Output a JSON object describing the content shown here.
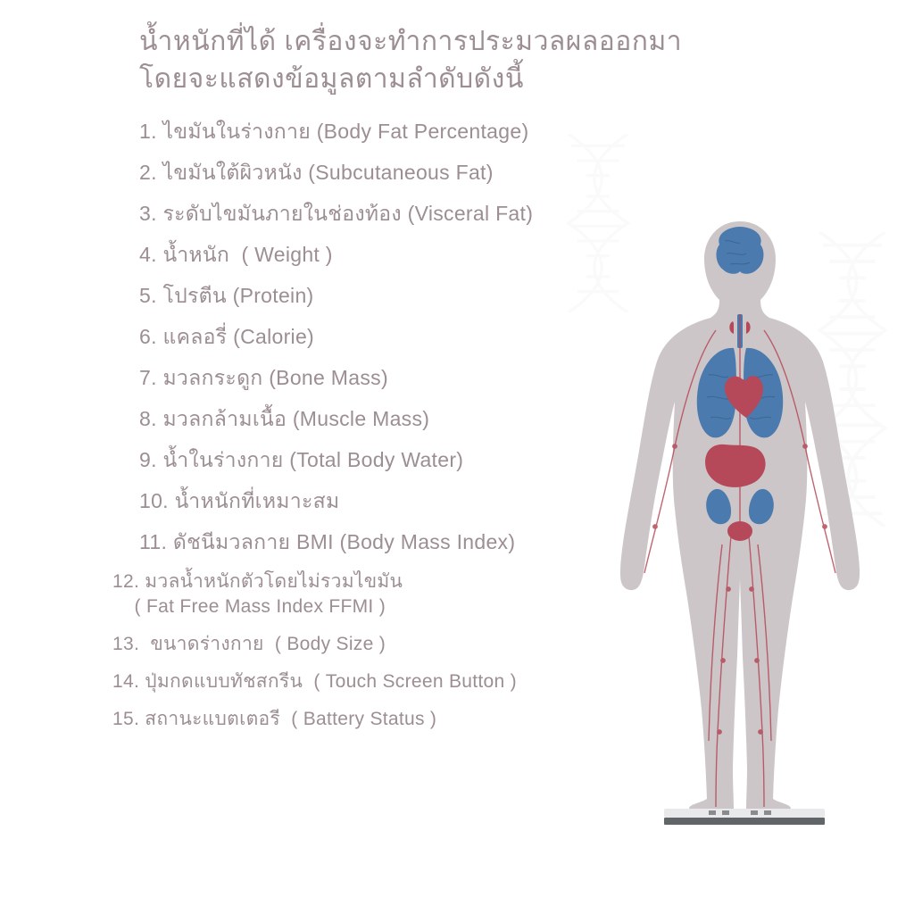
{
  "title": {
    "line1": "น้ำหนักที่ได้ เครื่องจะทำการประมวลผลออกมา",
    "line2": "โดยจะแสดงข้อมูลตามลำดับดังนี้",
    "color": "#9c8e92",
    "fontsize": 30
  },
  "list": {
    "color": "#9c8e92",
    "fontsize": 23,
    "line_height": 46,
    "items": [
      "1. ไขมันในร่างกาย (Body Fat Percentage)",
      "2. ไขมันใต้ผิวหนัง (Subcutaneous Fat)",
      "3. ระดับไขมันภายในช่องท้อง (Visceral Fat)",
      "4. น้ำหนัก  ( Weight )",
      "5. โปรตีน (Protein)",
      "6. แคลอรี่ (Calorie)",
      "7. มวลกระดูก (Bone Mass)",
      "8. มวลกล้ามเนื้อ (Muscle Mass)",
      "9. น้ำในร่างกาย (Total Body Water)",
      "10. น้ำหนักที่เหมาะสม",
      "11. ดัชนีมวลกาย BMI (Body Mass Index)",
      "12. มวลน้ำหนักตัวโดยไม่รวมไขมัน\n    ( Fat Free Mass Index FFMI )",
      "13.  ขนาดร่างกาย  ( Body Size )",
      "14. ปุ่มกดแบบทัชสกรีน  ( Touch Screen Button )",
      "15. สถานะแบตเตอรี  ( Battery Status )"
    ]
  },
  "figure": {
    "body_color": "#c9c2c4",
    "organ_blue": "#3b6fa8",
    "organ_red": "#b03a4c",
    "scale_top": "#e8e8ea",
    "scale_side": "#55585c",
    "vessel_color": "#b03a4c",
    "vessel_width": 1.4
  },
  "dna": {
    "color": "#d9d2d4"
  },
  "background_color": "#ffffff"
}
